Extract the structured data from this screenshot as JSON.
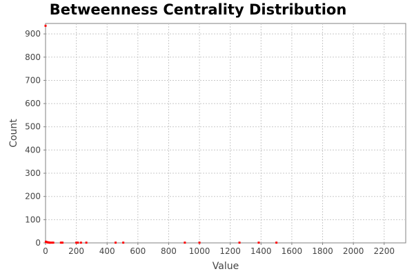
{
  "chart_data": {
    "type": "scatter",
    "title": "Betweenness Centrality Distribution",
    "xlabel": "Value",
    "ylabel": "Count",
    "xlim": [
      0,
      2340
    ],
    "ylim": [
      0,
      945
    ],
    "x_ticks": [
      0,
      200,
      400,
      600,
      800,
      1000,
      1200,
      1400,
      1600,
      1800,
      2000,
      2200
    ],
    "y_ticks": [
      0,
      100,
      200,
      300,
      400,
      500,
      600,
      700,
      800,
      900
    ],
    "grid": true,
    "legend": "none",
    "series_color": "#ff0000",
    "points": [
      {
        "x": 0,
        "y": 935
      },
      {
        "x": 2,
        "y": 5
      },
      {
        "x": 5,
        "y": 4
      },
      {
        "x": 10,
        "y": 3
      },
      {
        "x": 15,
        "y": 2
      },
      {
        "x": 20,
        "y": 2
      },
      {
        "x": 25,
        "y": 1
      },
      {
        "x": 30,
        "y": 1
      },
      {
        "x": 40,
        "y": 1
      },
      {
        "x": 50,
        "y": 1
      },
      {
        "x": 100,
        "y": 1
      },
      {
        "x": 110,
        "y": 1
      },
      {
        "x": 200,
        "y": 1
      },
      {
        "x": 210,
        "y": 1
      },
      {
        "x": 230,
        "y": 1
      },
      {
        "x": 265,
        "y": 1
      },
      {
        "x": 455,
        "y": 1
      },
      {
        "x": 505,
        "y": 1
      },
      {
        "x": 905,
        "y": 1
      },
      {
        "x": 1000,
        "y": 1
      },
      {
        "x": 1260,
        "y": 1
      },
      {
        "x": 1385,
        "y": 1
      },
      {
        "x": 1500,
        "y": 1
      }
    ]
  }
}
